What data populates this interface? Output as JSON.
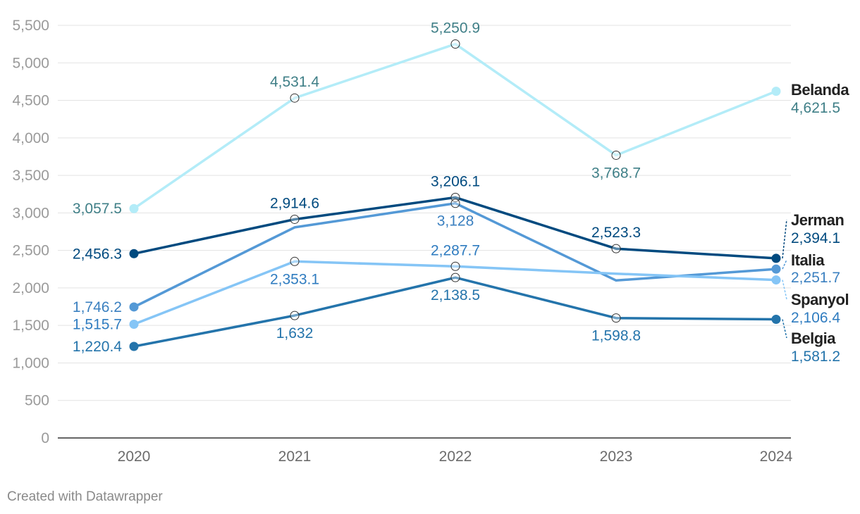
{
  "chart_data": {
    "type": "line",
    "x": [
      "2020",
      "2021",
      "2022",
      "2023",
      "2024"
    ],
    "ylim": [
      0,
      5500
    ],
    "yticks": [
      0,
      500,
      1000,
      1500,
      2000,
      2500,
      3000,
      3500,
      4000,
      4500,
      5000,
      5500
    ],
    "ytick_labels": [
      "0",
      "500",
      "1,000",
      "1,500",
      "2,000",
      "2,500",
      "3,000",
      "3,500",
      "4,000",
      "4,500",
      "5,000",
      "5,500"
    ],
    "grid": true,
    "series": [
      {
        "name": "Belanda",
        "color": "#b3ecf8",
        "label_color": "#3f7f87",
        "values": [
          3057.5,
          4531.4,
          5250.9,
          3768.7,
          4621.5
        ],
        "value_labels": [
          "3,057.5",
          "4,531.4",
          "5,250.9",
          "3,768.7",
          "4,621.5"
        ],
        "label_pos": [
          "left",
          "above",
          "above",
          "below",
          "end"
        ]
      },
      {
        "name": "Jerman",
        "color": "#004a7f",
        "label_color": "#004a7f",
        "values": [
          2456.3,
          2914.6,
          3206.1,
          2523.3,
          2394.1
        ],
        "value_labels": [
          "2,456.3",
          "2,914.6",
          "3,206.1",
          "2,523.3",
          "2,394.1"
        ],
        "label_pos": [
          "left",
          "above",
          "above",
          "above",
          "end"
        ]
      },
      {
        "name": "Italia",
        "color": "#5499d6",
        "label_color": "#3b80c0",
        "values": [
          1746.2,
          2807,
          3128,
          2100,
          2251.7
        ],
        "value_labels": [
          "1,746.2",
          null,
          "3,128",
          null,
          "2,251.7"
        ],
        "label_pos": [
          "left",
          null,
          "below",
          null,
          "end"
        ]
      },
      {
        "name": "Spanyol",
        "color": "#85c5f6",
        "label_color": "#2f7cc0",
        "values": [
          1515.7,
          2353.1,
          2287.7,
          2190,
          2106.4
        ],
        "value_labels": [
          "1,515.7",
          "2,353.1",
          "2,287.7",
          null,
          "2,106.4"
        ],
        "label_pos": [
          "left",
          "below",
          "above",
          null,
          "end"
        ]
      },
      {
        "name": "Belgia",
        "color": "#2474ab",
        "label_color": "#2474ab",
        "values": [
          1220.4,
          1632,
          2138.5,
          1598.8,
          1581.2
        ],
        "value_labels": [
          "1,220.4",
          "1,632",
          "2,138.5",
          "1,598.8",
          "1,581.2"
        ],
        "label_pos": [
          "left",
          "below",
          "below",
          "below",
          "end"
        ]
      }
    ],
    "source": "Created with Datawrapper"
  }
}
